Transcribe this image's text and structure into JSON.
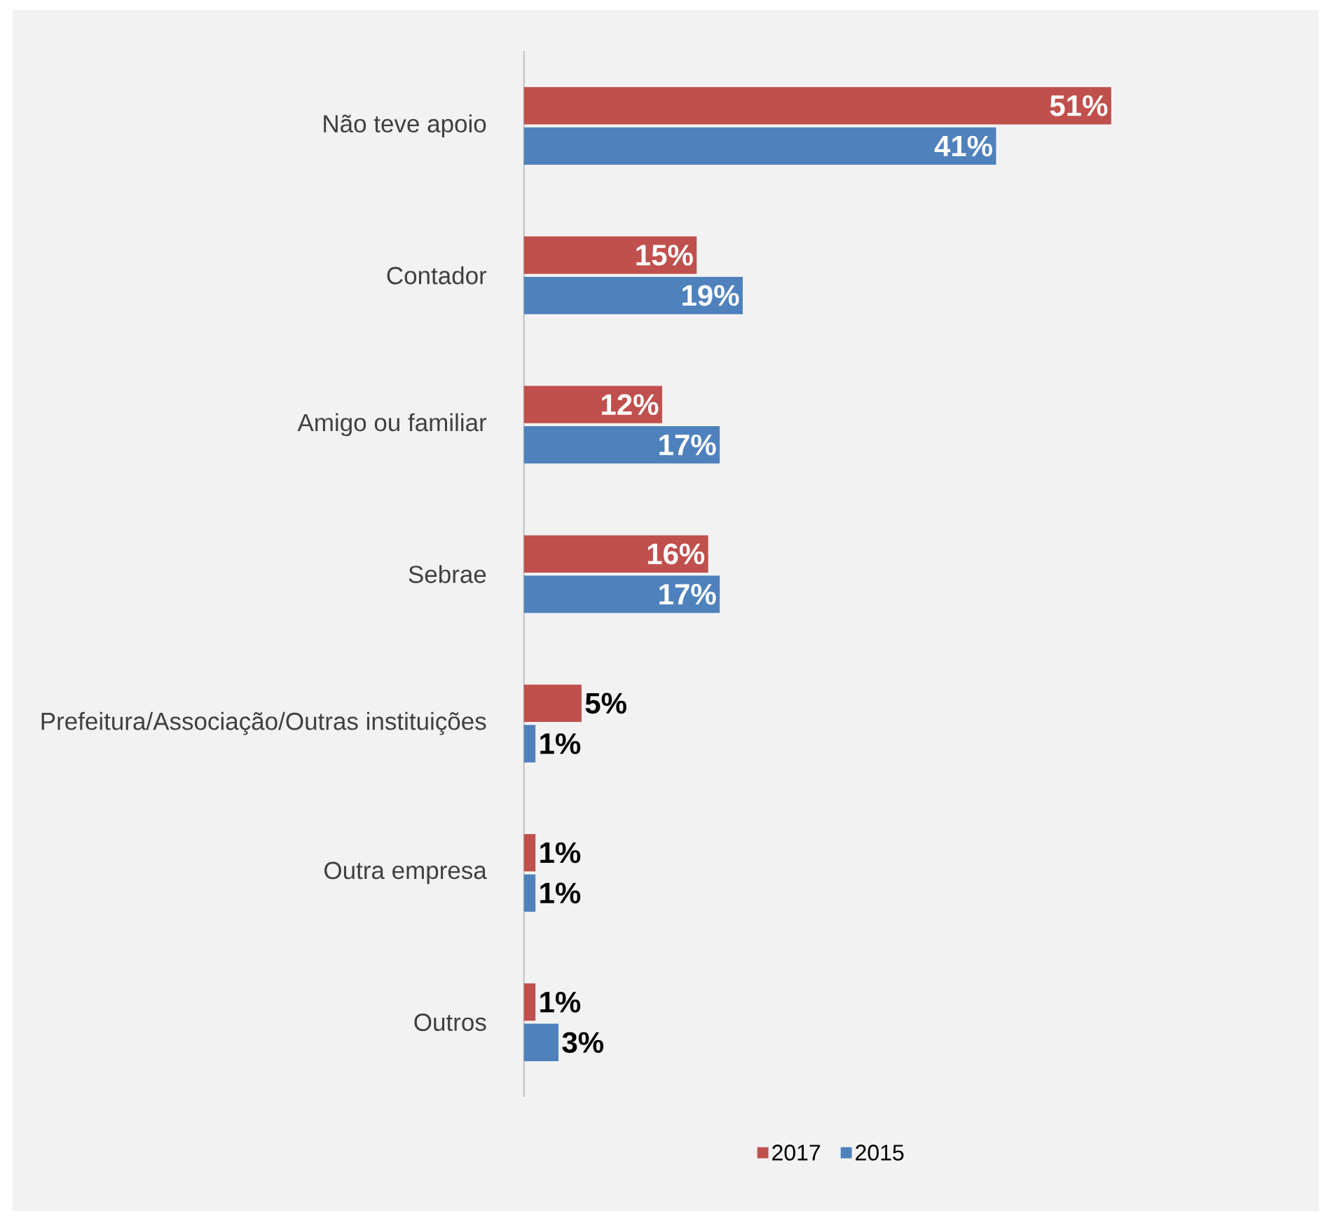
{
  "chart_data": {
    "type": "bar",
    "orientation": "horizontal",
    "categories": [
      "Não teve apoio",
      "Contador",
      "Amigo ou familiar",
      "Sebrae",
      "Prefeitura/Associação/Outras instituições",
      "Outra empresa",
      "Outros"
    ],
    "series": [
      {
        "name": "2017",
        "color": "#c0504d",
        "values": [
          51,
          15,
          12,
          16,
          5,
          1,
          1
        ],
        "value_labels": [
          "51%",
          "15%",
          "12%",
          "16%",
          "5%",
          "1%",
          "1%"
        ]
      },
      {
        "name": "2015",
        "color": "#4f81bd",
        "values": [
          41,
          19,
          17,
          17,
          1,
          1,
          3
        ],
        "value_labels": [
          "41%",
          "19%",
          "17%",
          "17%",
          "1%",
          "1%",
          "3%"
        ]
      }
    ],
    "legend": "bottom"
  }
}
